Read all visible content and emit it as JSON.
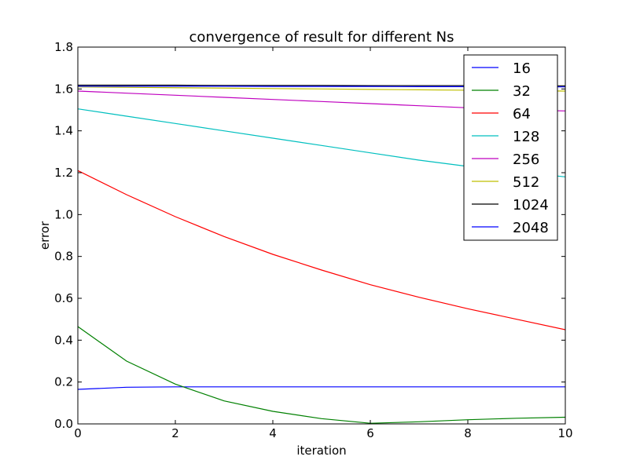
{
  "chart_data": {
    "type": "line",
    "title": "convergence of result for different Ns",
    "xlabel": "iteration",
    "ylabel": "error",
    "xlim": [
      0,
      10
    ],
    "ylim": [
      0,
      1.8
    ],
    "xticks": [
      "0",
      "2",
      "4",
      "6",
      "8",
      "10"
    ],
    "yticks": [
      "0.0",
      "0.2",
      "0.4",
      "0.6",
      "0.8",
      "1.0",
      "1.2",
      "1.4",
      "1.6",
      "1.8"
    ],
    "grid": false,
    "legend_position": "top-right",
    "x": [
      0,
      1,
      2,
      3,
      4,
      5,
      6,
      7,
      8,
      9,
      10
    ],
    "series": [
      {
        "name": "16",
        "color": "#0000ff",
        "values": [
          0.165,
          0.175,
          0.177,
          0.177,
          0.177,
          0.177,
          0.177,
          0.177,
          0.177,
          0.177,
          0.177
        ]
      },
      {
        "name": "32",
        "color": "#008000",
        "values": [
          0.465,
          0.3,
          0.19,
          0.11,
          0.06,
          0.025,
          0.003,
          0.01,
          0.02,
          0.027,
          0.032
        ]
      },
      {
        "name": "64",
        "color": "#ff0000",
        "values": [
          1.21,
          1.095,
          0.99,
          0.895,
          0.81,
          0.735,
          0.665,
          0.605,
          0.55,
          0.5,
          0.45
        ]
      },
      {
        "name": "128",
        "color": "#00bfbf",
        "values": [
          1.505,
          1.47,
          1.435,
          1.4,
          1.365,
          1.33,
          1.295,
          1.26,
          1.23,
          1.205,
          1.18
        ]
      },
      {
        "name": "256",
        "color": "#bf00bf",
        "values": [
          1.59,
          1.58,
          1.57,
          1.56,
          1.55,
          1.54,
          1.53,
          1.52,
          1.51,
          1.5,
          1.495
        ]
      },
      {
        "name": "512",
        "color": "#bfbf00",
        "values": [
          1.61,
          1.608,
          1.606,
          1.604,
          1.602,
          1.6,
          1.598,
          1.596,
          1.594,
          1.592,
          1.59
        ]
      },
      {
        "name": "1024",
        "color": "#000000",
        "values": [
          1.618,
          1.618,
          1.618,
          1.617,
          1.617,
          1.617,
          1.616,
          1.616,
          1.616,
          1.615,
          1.615
        ]
      },
      {
        "name": "2048",
        "color": "#0000ff",
        "values": [
          1.613,
          1.613,
          1.613,
          1.613,
          1.612,
          1.612,
          1.612,
          1.611,
          1.611,
          1.611,
          1.61
        ]
      }
    ]
  }
}
